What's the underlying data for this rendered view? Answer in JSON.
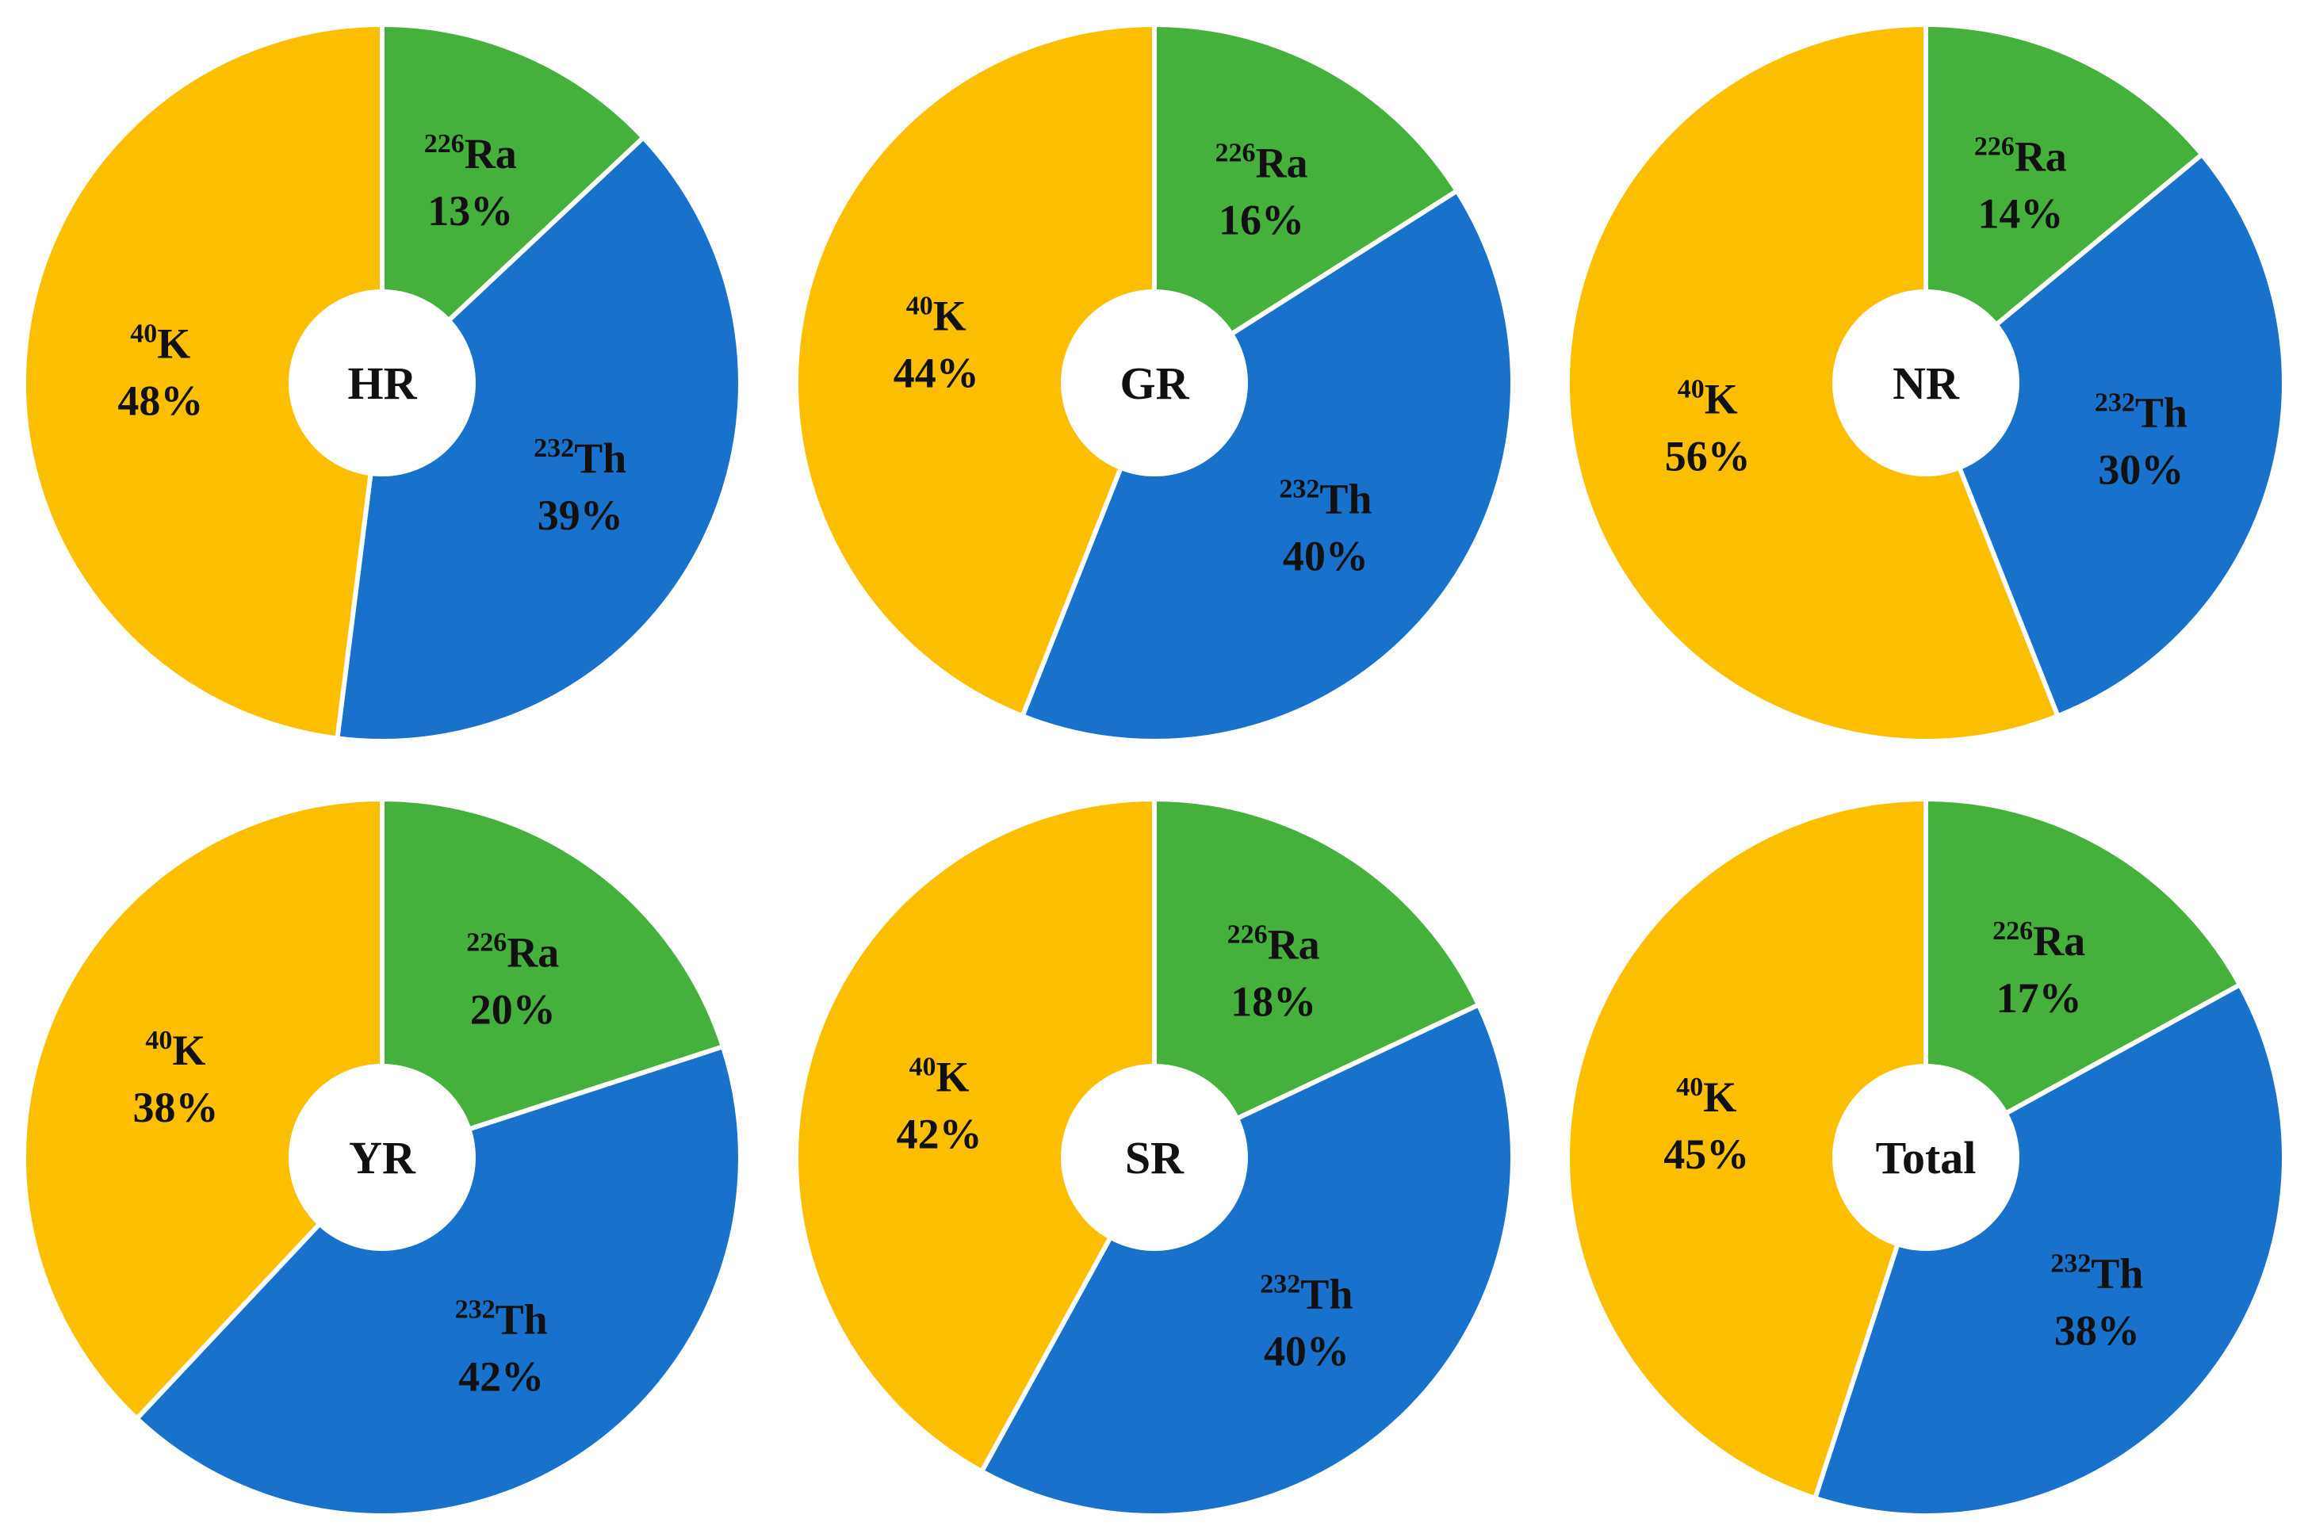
{
  "colors": {
    "Ra": "#45b03c",
    "Th": "#1872cc",
    "K": "#fcbf00"
  },
  "chart_data": [
    {
      "type": "pie",
      "name": "HR",
      "slices": [
        {
          "label": "Ra",
          "mass": "226",
          "value": 13,
          "pct": "13%"
        },
        {
          "label": "Th",
          "mass": "232",
          "value": 39,
          "pct": "39%"
        },
        {
          "label": "K",
          "mass": "40",
          "value": 48,
          "pct": "48%"
        }
      ]
    },
    {
      "type": "pie",
      "name": "GR",
      "slices": [
        {
          "label": "Ra",
          "mass": "226",
          "value": 16,
          "pct": "16%"
        },
        {
          "label": "Th",
          "mass": "232",
          "value": 40,
          "pct": "40%"
        },
        {
          "label": "K",
          "mass": "40",
          "value": 44,
          "pct": "44%"
        }
      ]
    },
    {
      "type": "pie",
      "name": "NR",
      "slices": [
        {
          "label": "Ra",
          "mass": "226",
          "value": 14,
          "pct": "14%"
        },
        {
          "label": "Th",
          "mass": "232",
          "value": 30,
          "pct": "30%"
        },
        {
          "label": "K",
          "mass": "40",
          "value": 56,
          "pct": "56%"
        }
      ]
    },
    {
      "type": "pie",
      "name": "YR",
      "slices": [
        {
          "label": "Ra",
          "mass": "226",
          "value": 20,
          "pct": "20%"
        },
        {
          "label": "Th",
          "mass": "232",
          "value": 42,
          "pct": "42%"
        },
        {
          "label": "K",
          "mass": "40",
          "value": 38,
          "pct": "38%"
        }
      ]
    },
    {
      "type": "pie",
      "name": "SR",
      "slices": [
        {
          "label": "Ra",
          "mass": "226",
          "value": 18,
          "pct": "18%"
        },
        {
          "label": "Th",
          "mass": "232",
          "value": 40,
          "pct": "40%"
        },
        {
          "label": "K",
          "mass": "40",
          "value": 42,
          "pct": "42%"
        }
      ]
    },
    {
      "type": "pie",
      "name": "Total",
      "slices": [
        {
          "label": "Ra",
          "mass": "226",
          "value": 17,
          "pct": "17%"
        },
        {
          "label": "Th",
          "mass": "232",
          "value": 38,
          "pct": "38%"
        },
        {
          "label": "K",
          "mass": "40",
          "value": 45,
          "pct": "45%"
        }
      ]
    }
  ]
}
